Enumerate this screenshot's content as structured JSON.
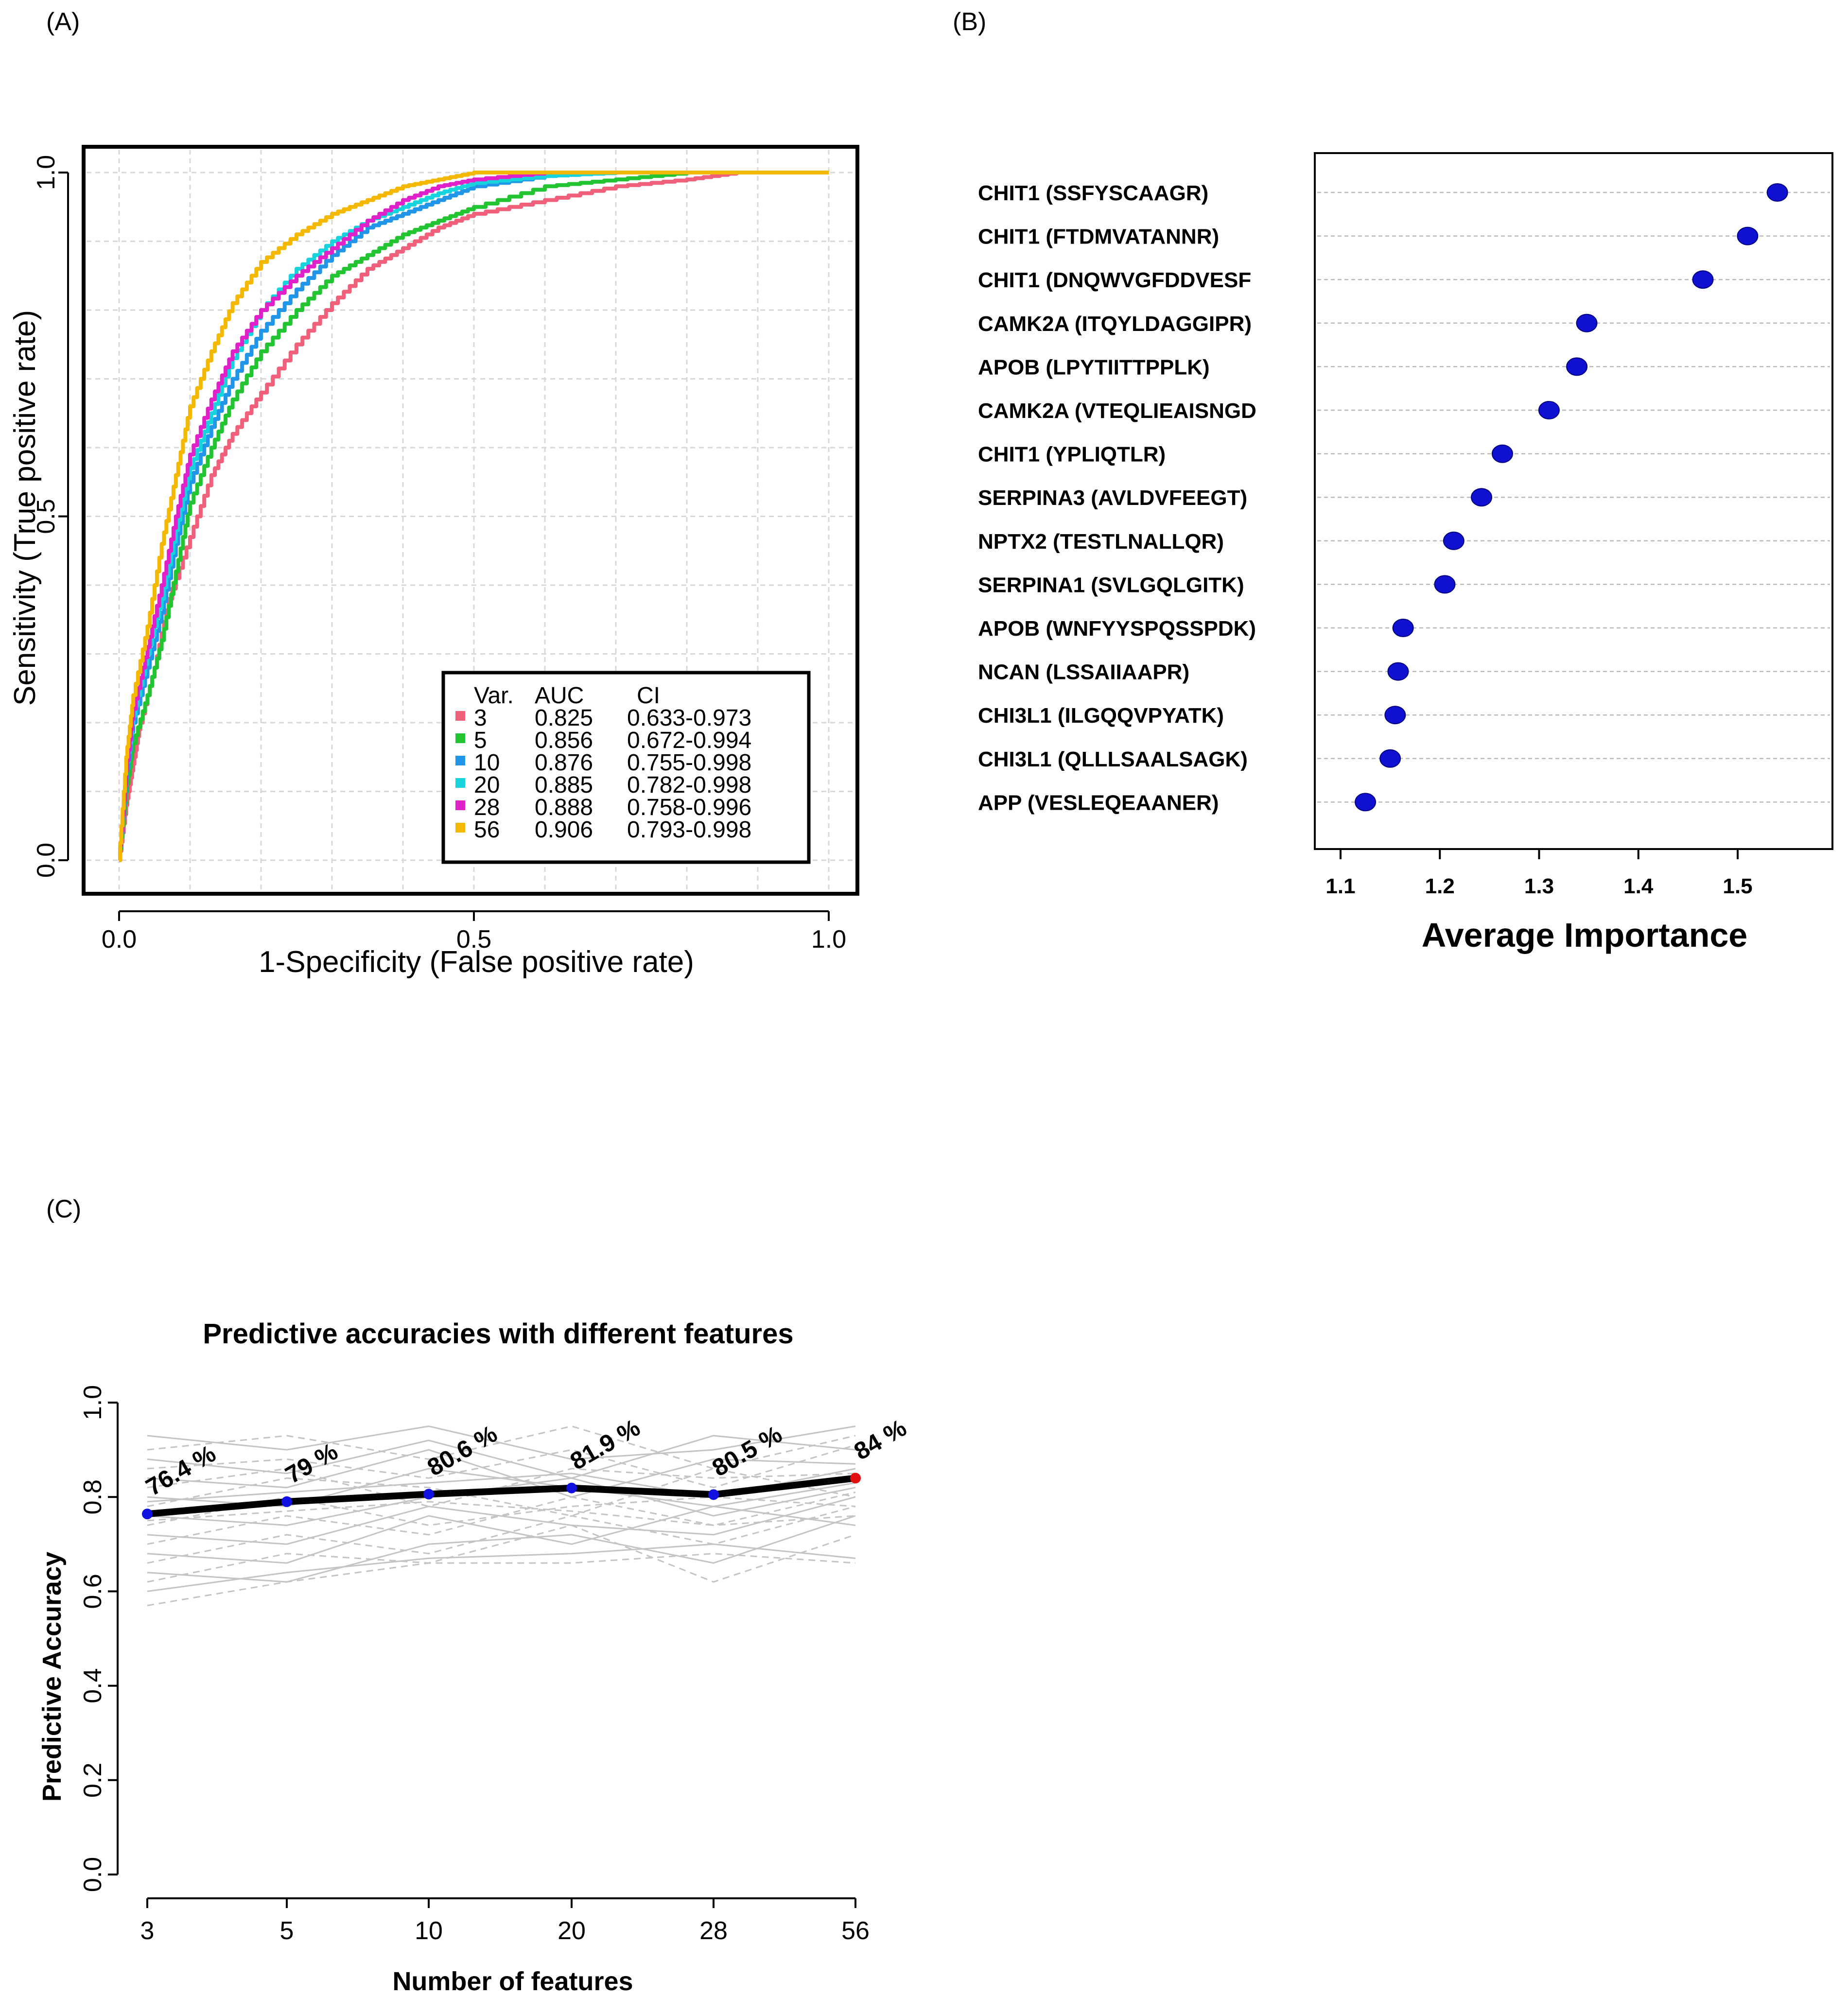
{
  "panels": {
    "a_label": "(A)",
    "b_label": "(B)",
    "c_label": "(C)"
  },
  "chart_data": [
    {
      "type": "line",
      "panel": "A",
      "title": "",
      "xlabel": "1-Specificity (False positive rate)",
      "ylabel": "Sensitivity (True positive rate)",
      "xlim": [
        0,
        1
      ],
      "ylim": [
        0,
        1
      ],
      "xticks": [
        "0.0",
        "0.5",
        "1.0"
      ],
      "yticks": [
        "0.0",
        "0.5",
        "1.0"
      ],
      "grid": true,
      "legend_position": "bottom-right",
      "legend_header": {
        "var": "Var.",
        "auc": "AUC",
        "ci": "CI"
      },
      "series": [
        {
          "name": "3",
          "auc": "0.825",
          "ci": "0.633-0.973",
          "color": "#f0607a",
          "x": [
            0,
            0.01,
            0.02,
            0.03,
            0.05,
            0.07,
            0.1,
            0.13,
            0.16,
            0.2,
            0.25,
            0.3,
            0.35,
            0.4,
            0.45,
            0.5,
            0.6,
            0.7,
            0.8,
            0.87,
            1.0
          ],
          "y": [
            0,
            0.08,
            0.14,
            0.2,
            0.28,
            0.38,
            0.47,
            0.56,
            0.62,
            0.68,
            0.75,
            0.81,
            0.86,
            0.89,
            0.92,
            0.94,
            0.96,
            0.98,
            0.99,
            1.0,
            1.0
          ]
        },
        {
          "name": "5",
          "auc": "0.856",
          "ci": "0.672-0.994",
          "color": "#22c432",
          "x": [
            0,
            0.01,
            0.02,
            0.04,
            0.06,
            0.08,
            0.1,
            0.13,
            0.16,
            0.2,
            0.25,
            0.3,
            0.35,
            0.4,
            0.45,
            0.5,
            0.6,
            0.7,
            0.8,
            1.0
          ],
          "y": [
            0,
            0.1,
            0.17,
            0.24,
            0.32,
            0.42,
            0.52,
            0.6,
            0.67,
            0.74,
            0.8,
            0.85,
            0.88,
            0.91,
            0.93,
            0.95,
            0.98,
            0.99,
            1.0,
            1.0
          ]
        },
        {
          "name": "10",
          "auc": "0.876",
          "ci": "0.755-0.998",
          "color": "#2196e8",
          "x": [
            0,
            0.01,
            0.02,
            0.04,
            0.06,
            0.08,
            0.1,
            0.13,
            0.16,
            0.2,
            0.25,
            0.3,
            0.35,
            0.4,
            0.45,
            0.5,
            0.6,
            0.7,
            1.0
          ],
          "y": [
            0,
            0.12,
            0.2,
            0.28,
            0.36,
            0.46,
            0.55,
            0.63,
            0.7,
            0.77,
            0.83,
            0.88,
            0.92,
            0.94,
            0.96,
            0.98,
            0.995,
            1.0,
            1.0
          ]
        },
        {
          "name": "20",
          "auc": "0.885",
          "ci": "0.782-0.998",
          "color": "#17d3de",
          "x": [
            0,
            0.01,
            0.02,
            0.04,
            0.06,
            0.08,
            0.1,
            0.13,
            0.16,
            0.2,
            0.25,
            0.3,
            0.35,
            0.4,
            0.45,
            0.5,
            0.6,
            0.7,
            1.0
          ],
          "y": [
            0,
            0.13,
            0.21,
            0.3,
            0.38,
            0.48,
            0.57,
            0.65,
            0.73,
            0.8,
            0.86,
            0.9,
            0.93,
            0.95,
            0.97,
            0.985,
            0.995,
            1.0,
            1.0
          ]
        },
        {
          "name": "28",
          "auc": "0.888",
          "ci": "0.758-0.996",
          "color": "#e020c8",
          "x": [
            0,
            0.01,
            0.02,
            0.04,
            0.06,
            0.08,
            0.1,
            0.13,
            0.16,
            0.2,
            0.25,
            0.3,
            0.35,
            0.4,
            0.45,
            0.5,
            0.6,
            0.7,
            1.0
          ],
          "y": [
            0,
            0.13,
            0.22,
            0.31,
            0.4,
            0.5,
            0.59,
            0.67,
            0.74,
            0.8,
            0.85,
            0.89,
            0.93,
            0.96,
            0.98,
            0.99,
            1.0,
            1.0,
            1.0
          ]
        },
        {
          "name": "56",
          "auc": "0.906",
          "ci": "0.793-0.998",
          "color": "#f5b800",
          "x": [
            0,
            0.01,
            0.02,
            0.04,
            0.06,
            0.08,
            0.1,
            0.13,
            0.16,
            0.2,
            0.25,
            0.3,
            0.35,
            0.4,
            0.45,
            0.5,
            0.6,
            1.0
          ],
          "y": [
            0,
            0.15,
            0.24,
            0.34,
            0.46,
            0.56,
            0.66,
            0.74,
            0.81,
            0.87,
            0.91,
            0.94,
            0.96,
            0.98,
            0.99,
            1.0,
            1.0,
            1.0
          ]
        }
      ]
    },
    {
      "type": "scatter",
      "panel": "B",
      "xlabel": "Average Importance",
      "xlim": [
        1.07,
        1.58
      ],
      "xticks": [
        "1.1",
        "1.2",
        "1.3",
        "1.4",
        "1.5"
      ],
      "point_color": "#1010d0",
      "categories": [
        "CHIT1 (SSFYSCAAGR)",
        "CHIT1 (FTDMVATANNR)",
        "CHIT1 (DNQWVGFDDVESF",
        "CAMK2A (ITQYLDAGGIPR)",
        "APOB (LPYTIITTPPLK)",
        "CAMK2A (VTEQLIEAISNGD",
        "CHIT1 (YPLIQTLR)",
        "SERPINA3 (AVLDVFEEGT)",
        "NPTX2 (TESTLNALLQR)",
        "SERPINA1 (SVLGQLGITK)",
        "APOB (WNFYYSPQSSPDK)",
        "NCAN (LSSAIIAAPR)",
        "CHI3L1 (ILGQQVPYATK)",
        "CHI3L1 (QLLLSAALSAGK)",
        "APP (VESLEQEAANER)"
      ],
      "values": [
        1.54,
        1.51,
        1.465,
        1.348,
        1.338,
        1.31,
        1.263,
        1.242,
        1.214,
        1.205,
        1.163,
        1.158,
        1.155,
        1.15,
        1.125
      ]
    },
    {
      "type": "line",
      "panel": "C",
      "title": "Predictive accuracies with different features",
      "xlabel": "Number of features",
      "ylabel": "Predictive Accuracy",
      "ylim": [
        0,
        1
      ],
      "yticks": [
        "0.0",
        "0.2",
        "0.4",
        "0.6",
        "0.8",
        "1.0"
      ],
      "categories": [
        "3",
        "5",
        "10",
        "20",
        "28",
        "56"
      ],
      "values": [
        0.764,
        0.79,
        0.806,
        0.819,
        0.805,
        0.84
      ],
      "value_labels": [
        "76.4 %",
        "79 %",
        "80.6 %",
        "81.9 %",
        "80.5 %",
        "84 %"
      ],
      "point_colors": [
        "#1010e0",
        "#1010e0",
        "#1010e0",
        "#1010e0",
        "#1010e0",
        "#e01010"
      ],
      "background_series": [
        [
          0.93,
          0.9,
          0.95,
          0.88,
          0.9,
          0.95
        ],
        [
          0.9,
          0.93,
          0.88,
          0.95,
          0.86,
          0.93
        ],
        [
          0.88,
          0.85,
          0.92,
          0.84,
          0.93,
          0.9
        ],
        [
          0.86,
          0.88,
          0.84,
          0.9,
          0.82,
          0.91
        ],
        [
          0.84,
          0.82,
          0.9,
          0.8,
          0.88,
          0.87
        ],
        [
          0.82,
          0.86,
          0.78,
          0.86,
          0.84,
          0.85
        ],
        [
          0.8,
          0.78,
          0.86,
          0.82,
          0.78,
          0.83
        ],
        [
          0.78,
          0.84,
          0.82,
          0.76,
          0.86,
          0.8
        ],
        [
          0.76,
          0.74,
          0.8,
          0.84,
          0.76,
          0.82
        ],
        [
          0.74,
          0.8,
          0.74,
          0.78,
          0.8,
          0.78
        ],
        [
          0.72,
          0.7,
          0.78,
          0.74,
          0.72,
          0.8
        ],
        [
          0.7,
          0.76,
          0.72,
          0.8,
          0.74,
          0.76
        ],
        [
          0.68,
          0.66,
          0.76,
          0.7,
          0.78,
          0.74
        ],
        [
          0.66,
          0.72,
          0.68,
          0.76,
          0.7,
          0.78
        ],
        [
          0.64,
          0.62,
          0.7,
          0.72,
          0.66,
          0.76
        ],
        [
          0.62,
          0.68,
          0.66,
          0.74,
          0.62,
          0.72
        ],
        [
          0.6,
          0.64,
          0.67,
          0.68,
          0.7,
          0.67
        ],
        [
          0.57,
          0.62,
          0.66,
          0.66,
          0.68,
          0.66
        ],
        [
          0.79,
          0.81,
          0.83,
          0.85,
          0.8,
          0.86
        ],
        [
          0.75,
          0.77,
          0.79,
          0.77,
          0.74,
          0.81
        ]
      ]
    }
  ]
}
